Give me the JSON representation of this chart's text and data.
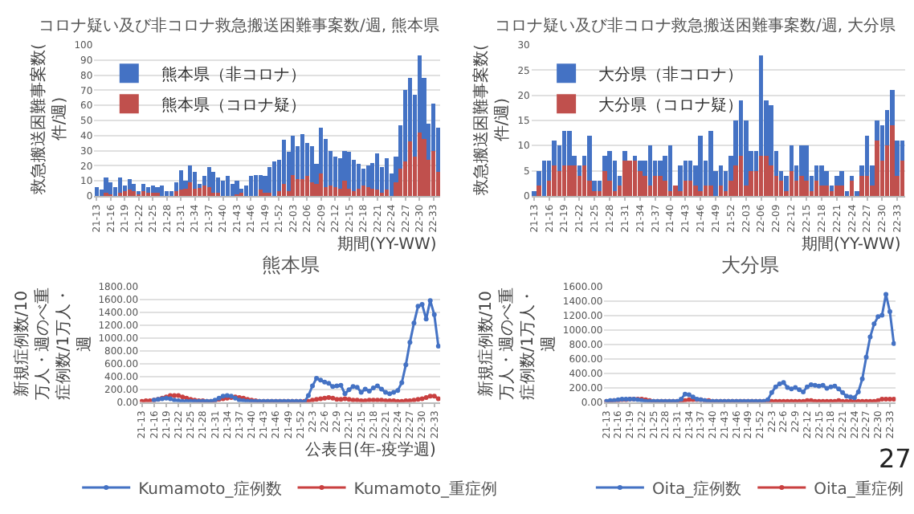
{
  "chart_data": [
    {
      "type": "bar",
      "title": "コロナ疑い及び非コロナ救急搬送困難事案数/週, 熊本県",
      "ylabel": "救急搬送困難事案数(件/週)",
      "xlabel": "期間(YY-WW)",
      "stacked": true,
      "grid": "y",
      "legend": "top left",
      "categories": [
        "21-13",
        null,
        null,
        "21-16",
        null,
        null,
        "21-19",
        null,
        null,
        "21-22",
        null,
        null,
        "21-25",
        null,
        null,
        "21-28",
        null,
        null,
        "21-31",
        null,
        null,
        "21-34",
        null,
        null,
        "21-37",
        null,
        null,
        "21-40",
        null,
        null,
        "21-43",
        null,
        null,
        "21-46",
        null,
        null,
        "21-49",
        null,
        null,
        "21-52",
        null,
        null,
        "22-03",
        null,
        null,
        "22-06",
        null,
        null,
        "22-09",
        null,
        null,
        "22-12",
        null,
        null,
        "22-15",
        null,
        null,
        "22-18",
        null,
        null,
        "22-21",
        null,
        null,
        "22-24",
        null,
        null,
        "22-27",
        null,
        null,
        "22-30",
        null,
        null,
        "22-33",
        null
      ],
      "ylim": [
        0,
        100
      ],
      "yticks": [
        0,
        10,
        20,
        30,
        40,
        50,
        60,
        70,
        80,
        90,
        100
      ],
      "series": [
        {
          "name": "熊本県（コロナ疑）",
          "color": "#c0504d",
          "values": [
            0,
            0,
            2,
            1,
            0,
            2,
            3,
            4,
            3,
            2,
            3,
            2,
            2,
            2,
            0,
            0,
            0,
            3,
            4,
            5,
            9,
            5,
            6,
            7,
            6,
            2,
            2,
            0,
            0,
            0,
            1,
            2,
            0,
            0,
            0,
            4,
            2,
            2,
            0,
            3,
            8,
            3,
            14,
            11,
            11,
            13,
            9,
            8,
            15,
            6,
            7,
            6,
            5,
            10,
            5,
            3,
            5,
            7,
            6,
            5,
            4,
            2,
            4,
            0,
            9,
            18,
            23,
            36,
            26,
            42,
            38,
            24,
            30,
            16
          ]
        },
        {
          "name": "熊本県（非コロナ）",
          "color": "#4472c4",
          "values": [
            6,
            4,
            10,
            8,
            6,
            10,
            4,
            7,
            5,
            1,
            5,
            4,
            5,
            4,
            7,
            3,
            3,
            6,
            13,
            5,
            11,
            11,
            2,
            6,
            13,
            14,
            10,
            10,
            13,
            8,
            9,
            3,
            7,
            13,
            14,
            10,
            11,
            17,
            23,
            21,
            29,
            26,
            26,
            22,
            30,
            22,
            24,
            13,
            30,
            32,
            23,
            20,
            20,
            20,
            24,
            21,
            16,
            11,
            14,
            17,
            24,
            17,
            21,
            15,
            17,
            29,
            47,
            42,
            41,
            51,
            40,
            24,
            31,
            29
          ]
        }
      ]
    },
    {
      "type": "bar",
      "title": "コロナ疑い及び非コロナ救急搬送困難事案数/週, 大分県",
      "ylabel": "救急搬送困難事案数(件/週)",
      "xlabel": "期間(YY-WW)",
      "stacked": true,
      "grid": "y",
      "legend": "top left",
      "categories": [
        "21-13",
        null,
        null,
        "21-16",
        null,
        null,
        "21-19",
        null,
        null,
        "21-22",
        null,
        null,
        "21-25",
        null,
        null,
        "21-28",
        null,
        null,
        "21-31",
        null,
        null,
        "21-34",
        null,
        null,
        "21-37",
        null,
        null,
        "21-40",
        null,
        null,
        "21-43",
        null,
        null,
        "21-46",
        null,
        null,
        "21-49",
        null,
        null,
        "21-52",
        null,
        null,
        "22-03",
        null,
        null,
        "22-06",
        null,
        null,
        "22-09",
        null,
        null,
        "22-12",
        null,
        null,
        "22-15",
        null,
        null,
        "22-18",
        null,
        null,
        "22-21",
        null,
        null,
        "22-24",
        null,
        null,
        "22-27",
        null,
        null,
        "22-30",
        null,
        null,
        "22-33",
        null
      ],
      "ylim": [
        0,
        30
      ],
      "yticks": [
        0,
        5,
        10,
        15,
        20,
        25,
        30
      ],
      "series": [
        {
          "name": "大分県（コロナ疑）",
          "color": "#c0504d",
          "values": [
            0,
            2,
            0,
            3,
            6,
            5,
            6,
            6,
            6,
            4,
            6,
            3,
            1,
            1,
            5,
            3,
            1,
            2,
            7,
            7,
            7,
            5,
            4,
            2,
            4,
            4,
            3,
            1,
            2,
            1,
            3,
            3,
            2,
            1,
            2,
            2,
            0,
            2,
            1,
            3,
            6,
            8,
            2,
            5,
            5,
            8,
            8,
            6,
            4,
            3,
            1,
            5,
            3,
            4,
            3,
            1,
            3,
            2,
            2,
            1,
            2,
            2,
            0,
            3,
            0,
            4,
            4,
            2,
            11,
            7,
            10,
            14,
            4,
            7
          ]
        },
        {
          "name": "大分県（非コロナ）",
          "color": "#4472c4",
          "values": [
            1,
            3,
            7,
            4,
            5,
            5,
            7,
            7,
            2,
            2,
            2,
            9,
            2,
            2,
            3,
            6,
            6,
            2,
            2,
            0,
            1,
            2,
            3,
            8,
            3,
            3,
            5,
            9,
            0,
            5,
            4,
            4,
            4,
            11,
            5,
            11,
            5,
            4,
            4,
            5,
            9,
            11,
            13,
            4,
            4,
            20,
            11,
            12,
            5,
            2,
            3,
            5,
            3,
            6,
            7,
            3,
            3,
            4,
            3,
            1,
            2,
            3,
            1,
            1,
            1,
            2,
            8,
            4,
            4,
            7,
            7,
            7,
            7,
            4
          ]
        }
      ]
    },
    {
      "type": "line",
      "title": "熊本県",
      "ylabel": "新規症例数/10万人・週のべ重症例数/1万人・週",
      "xlabel": "公表日(年-疫学週)",
      "grid": "y",
      "legend": "bottom",
      "marker": "circle",
      "categories": [
        "21-13",
        null,
        null,
        "21-16",
        null,
        null,
        "21-19",
        null,
        null,
        "21-22",
        null,
        null,
        "21-25",
        null,
        null,
        "21-28",
        null,
        null,
        "21-31",
        null,
        null,
        "21-34",
        null,
        null,
        "21-37",
        null,
        null,
        "21-40",
        null,
        null,
        "21-43",
        null,
        null,
        "21-46",
        null,
        null,
        "21-49",
        null,
        null,
        "21-52",
        null,
        null,
        "22-3",
        null,
        null,
        "22-6",
        null,
        null,
        "22-9",
        null,
        null,
        "22-12",
        null,
        null,
        "22-15",
        null,
        null,
        "22-18",
        null,
        null,
        "22-21",
        null,
        null,
        "22-24",
        null,
        null,
        "22-27",
        null,
        null,
        "22-30",
        null,
        null,
        "22-33",
        null
      ],
      "ylim": [
        0,
        1800
      ],
      "yticks": [
        {
          "value": 0,
          "label": "0.00"
        },
        {
          "value": 200,
          "label": "200.00"
        },
        {
          "value": 400,
          "label": "400.00"
        },
        {
          "value": 600,
          "label": "600.00"
        },
        {
          "value": 800,
          "label": "800.00"
        },
        {
          "value": 1000,
          "label": "1000.00"
        },
        {
          "value": 1200,
          "label": "1200.00"
        },
        {
          "value": 1400,
          "label": "1400.00"
        },
        {
          "value": 1600,
          "label": "1600.00"
        },
        {
          "value": 1800,
          "label": "1800.00"
        }
      ],
      "series": [
        {
          "name": "Kumamoto_症例数",
          "color": "#4472c4",
          "values": [
            null,
            null,
            null,
            30,
            40,
            50,
            60,
            50,
            30,
            20,
            10,
            10,
            10,
            10,
            10,
            10,
            10,
            10,
            30,
            60,
            90,
            100,
            90,
            60,
            30,
            20,
            10,
            10,
            10,
            10,
            10,
            10,
            10,
            10,
            10,
            10,
            10,
            10,
            10,
            10,
            0,
            100,
            250,
            370,
            340,
            310,
            290,
            240,
            250,
            260,
            130,
            190,
            240,
            230,
            150,
            200,
            170,
            220,
            250,
            200,
            150,
            130,
            150,
            180,
            300,
            580,
            930,
            1230,
            1490,
            1520,
            1290,
            1580,
            1360,
            870
          ]
        },
        {
          "name": "Kumamoto_重症例",
          "color": "#c94040",
          "values": [
            10,
            20,
            20,
            30,
            40,
            60,
            80,
            100,
            100,
            100,
            80,
            60,
            40,
            30,
            20,
            20,
            10,
            10,
            20,
            40,
            50,
            60,
            70,
            80,
            70,
            60,
            40,
            30,
            20,
            10,
            10,
            10,
            10,
            10,
            10,
            10,
            10,
            10,
            10,
            10,
            10,
            10,
            30,
            40,
            50,
            60,
            70,
            60,
            40,
            40,
            50,
            40,
            30,
            30,
            20,
            20,
            30,
            30,
            30,
            30,
            20,
            20,
            20,
            10,
            10,
            20,
            20,
            30,
            40,
            50,
            70,
            90,
            90,
            50
          ]
        }
      ]
    },
    {
      "type": "line",
      "title": "大分県",
      "ylabel": "新規症例数/10万人・週のべ重症例数/1万人・週",
      "grid": "y",
      "legend": "bottom",
      "marker": "circle",
      "annotations": [
        "27"
      ],
      "categories": [
        "21-13",
        null,
        null,
        "21-16",
        null,
        null,
        "21-19",
        null,
        null,
        "21-22",
        null,
        null,
        "21-25",
        null,
        null,
        "21-28",
        null,
        null,
        "21-31",
        null,
        null,
        "21-34",
        null,
        null,
        "21-37",
        null,
        null,
        "21-40",
        null,
        null,
        "21-43",
        null,
        null,
        "21-46",
        null,
        null,
        "21-49",
        null,
        null,
        "21-52",
        null,
        null,
        "22-3",
        null,
        null,
        "22-6",
        null,
        null,
        "22-9",
        null,
        null,
        "22-12",
        null,
        null,
        "22-15",
        null,
        null,
        "22-18",
        null,
        null,
        "22-21",
        null,
        null,
        "22-24",
        null,
        null,
        "22-27",
        null,
        null,
        "22-30",
        null,
        null,
        "22-33",
        null
      ],
      "ylim": [
        0,
        1600
      ],
      "yticks": [
        {
          "value": 0,
          "label": "0.00"
        },
        {
          "value": 200,
          "label": "200.00"
        },
        {
          "value": 400,
          "label": "400.00"
        },
        {
          "value": 600,
          "label": "600.00"
        },
        {
          "value": 800,
          "label": "800.00"
        },
        {
          "value": 1000,
          "label": "1000.00"
        },
        {
          "value": 1200,
          "label": "1200.00"
        },
        {
          "value": 1400,
          "label": "1400.00"
        },
        {
          "value": 1600,
          "label": "1600.00"
        }
      ],
      "series": [
        {
          "name": "Oita_症例数",
          "color": "#4472c4",
          "values": [
            10,
            20,
            20,
            30,
            40,
            40,
            40,
            40,
            30,
            20,
            10,
            10,
            10,
            10,
            10,
            10,
            10,
            10,
            10,
            40,
            110,
            100,
            70,
            40,
            30,
            20,
            10,
            10,
            10,
            10,
            10,
            10,
            10,
            10,
            10,
            10,
            10,
            10,
            10,
            10,
            10,
            30,
            130,
            210,
            250,
            270,
            200,
            180,
            200,
            170,
            140,
            210,
            240,
            230,
            220,
            230,
            190,
            210,
            220,
            180,
            130,
            80,
            70,
            60,
            140,
            320,
            620,
            900,
            1080,
            1180,
            1200,
            1490,
            1250,
            810
          ]
        },
        {
          "name": "Oita_重症例",
          "color": "#c94040",
          "values": [
            10,
            10,
            20,
            20,
            30,
            30,
            40,
            40,
            40,
            40,
            30,
            20,
            10,
            10,
            10,
            10,
            10,
            10,
            10,
            10,
            20,
            30,
            30,
            30,
            30,
            20,
            20,
            10,
            10,
            10,
            10,
            10,
            10,
            10,
            10,
            10,
            10,
            10,
            10,
            10,
            10,
            10,
            10,
            10,
            10,
            10,
            10,
            10,
            10,
            10,
            10,
            20,
            20,
            10,
            10,
            10,
            10,
            10,
            10,
            20,
            10,
            10,
            10,
            10,
            10,
            10,
            10,
            10,
            10,
            20,
            40,
            40,
            40,
            40
          ]
        }
      ]
    }
  ]
}
